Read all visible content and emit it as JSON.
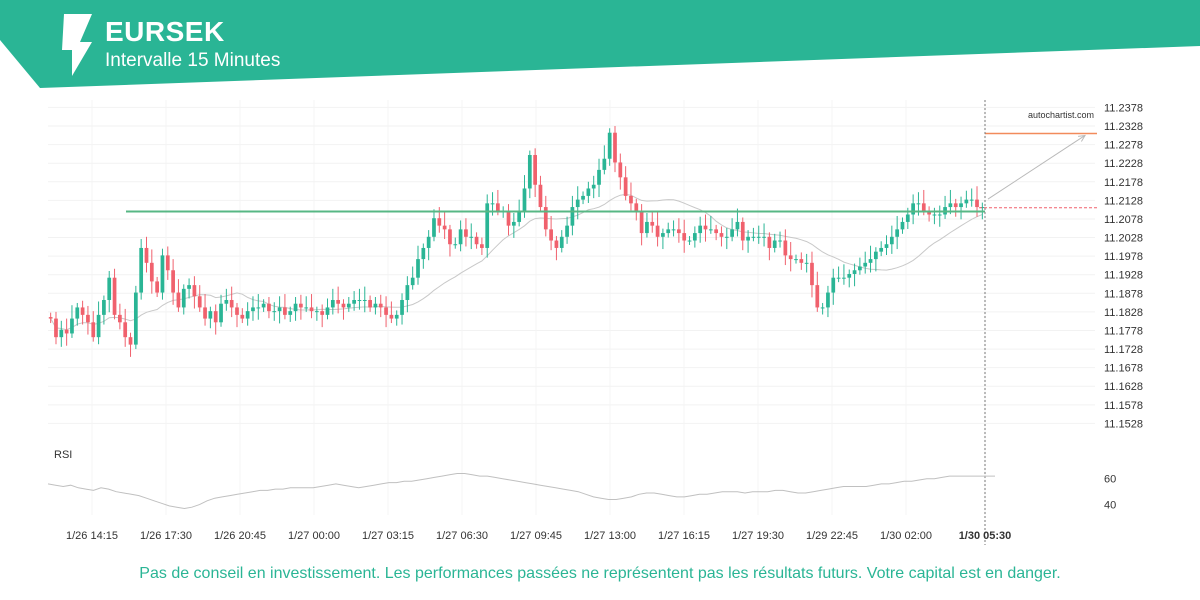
{
  "header": {
    "symbol": "EURSEK",
    "interval": "Intervalle 15 Minutes",
    "accent_color": "#2ab595",
    "logo_icon": "autochartist-logo-icon"
  },
  "watermark": "autochartist.com",
  "disclaimer": "Pas de conseil en investissement. Les performances passées ne représentent pas les résultats futurs. Votre capital est en danger.",
  "chart_data": {
    "type": "candlestick",
    "ylim": [
      11.1478,
      11.2398
    ],
    "y_ticks": [
      11.2378,
      11.2328,
      11.2278,
      11.2228,
      11.2178,
      11.2128,
      11.2078,
      11.2028,
      11.1978,
      11.1928,
      11.1878,
      11.1828,
      11.1778,
      11.1728,
      11.1678,
      11.1628,
      11.1578,
      11.1528
    ],
    "x_ticks": [
      "1/26 14:15",
      "1/26 17:30",
      "1/26 20:45",
      "1/27 00:00",
      "1/27 03:15",
      "1/27 06:30",
      "1/27 09:45",
      "1/27 13:00",
      "1/27 16:15",
      "1/27 19:30",
      "1/29 22:45",
      "1/30 02:00",
      "1/30 05:30"
    ],
    "highlight_x_tick": "1/30 05:30",
    "colors": {
      "up": "#2ab595",
      "down": "#f0616d",
      "moving_average": "#c8c8c8",
      "resistance": "#57b784",
      "target": "#f28b5c",
      "projection": "#b9b9b9"
    },
    "closes": [
      11.181,
      11.176,
      11.178,
      11.177,
      11.181,
      11.184,
      11.182,
      11.18,
      11.176,
      11.182,
      11.186,
      11.192,
      11.182,
      11.18,
      11.176,
      11.174,
      11.188,
      11.2,
      11.196,
      11.191,
      11.188,
      11.198,
      11.194,
      11.188,
      11.184,
      11.189,
      11.19,
      11.187,
      11.184,
      11.181,
      11.183,
      11.18,
      11.185,
      11.186,
      11.184,
      11.182,
      11.181,
      11.183,
      11.184,
      11.184,
      11.185,
      11.183,
      11.183,
      11.184,
      11.182,
      11.183,
      11.185,
      11.184,
      11.184,
      11.183,
      11.183,
      11.182,
      11.184,
      11.186,
      11.185,
      11.184,
      11.185,
      11.186,
      11.186,
      11.186,
      11.184,
      11.185,
      11.184,
      11.182,
      11.181,
      11.182,
      11.186,
      11.19,
      11.192,
      11.197,
      11.2,
      11.203,
      11.208,
      11.206,
      11.205,
      11.201,
      11.201,
      11.205,
      11.203,
      11.203,
      11.201,
      11.2,
      11.212,
      11.212,
      11.21,
      11.21,
      11.206,
      11.207,
      11.21,
      11.216,
      11.225,
      11.217,
      11.211,
      11.205,
      11.202,
      11.2,
      11.203,
      11.206,
      11.211,
      11.213,
      11.214,
      11.216,
      11.217,
      11.221,
      11.224,
      11.231,
      11.223,
      11.219,
      11.214,
      11.212,
      11.21,
      11.204,
      11.207,
      11.206,
      11.203,
      11.204,
      11.205,
      11.205,
      11.204,
      11.202,
      11.202,
      11.204,
      11.206,
      11.205,
      11.205,
      11.204,
      11.203,
      11.203,
      11.205,
      11.207,
      11.202,
      11.203,
      11.203,
      11.203,
      11.203,
      11.2,
      11.202,
      11.202,
      11.198,
      11.197,
      11.197,
      11.196,
      11.196,
      11.19,
      11.184,
      11.184,
      11.188,
      11.192,
      11.192,
      11.192,
      11.193,
      11.194,
      11.195,
      11.196,
      11.197,
      11.199,
      11.2,
      11.201,
      11.203,
      11.205,
      11.207,
      11.209,
      11.212,
      11.212,
      11.21,
      11.209,
      11.209,
      11.209,
      11.211,
      11.212,
      11.211,
      11.212,
      11.213,
      11.213,
      11.211,
      11.211
    ],
    "current_price": 11.2108,
    "resistance_level": 11.2098,
    "target_level": 11.2308,
    "rsi": {
      "label": "RSI",
      "y_ticks": [
        60,
        40
      ],
      "ylim": [
        32,
        76
      ],
      "values": [
        56,
        55,
        54,
        55,
        53,
        52,
        51,
        53,
        52,
        50,
        49,
        48,
        47,
        45,
        43,
        41,
        39,
        38,
        37,
        38,
        40,
        43,
        45,
        46,
        47,
        48,
        49,
        50,
        51,
        51,
        52,
        52,
        53,
        53,
        53,
        53,
        54,
        55,
        56,
        55,
        54,
        53,
        54,
        55,
        56,
        57,
        57,
        58,
        58,
        59,
        60,
        61,
        62,
        63,
        64,
        64,
        63,
        62,
        62,
        61,
        60,
        59,
        58,
        57,
        56,
        55,
        54,
        53,
        52,
        51,
        50,
        48,
        46,
        45,
        44,
        44,
        45,
        46,
        48,
        49,
        49,
        48,
        47,
        46,
        46,
        47,
        48,
        48,
        49,
        50,
        50,
        50,
        49,
        50,
        50,
        50,
        51,
        51,
        50,
        49,
        49,
        50,
        51,
        52,
        53,
        54,
        54,
        54,
        54,
        55,
        56,
        56,
        57,
        58,
        58,
        59,
        60,
        60,
        61,
        62,
        62,
        62,
        62,
        62,
        62,
        62
      ]
    }
  }
}
